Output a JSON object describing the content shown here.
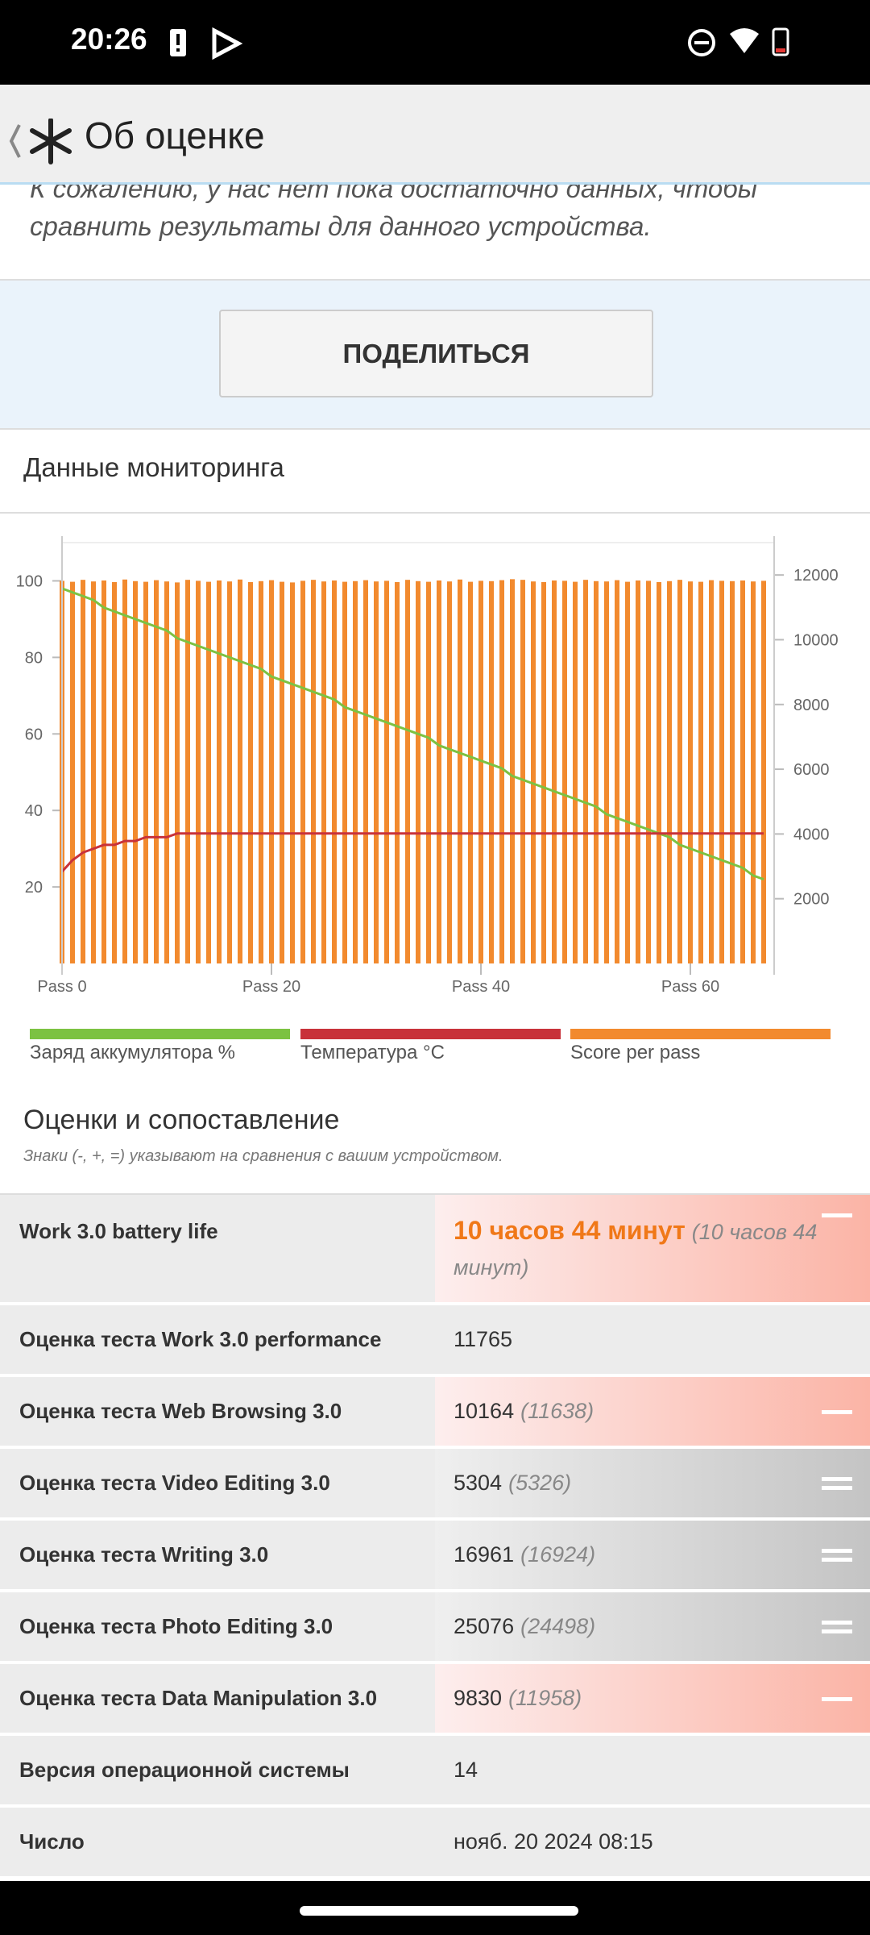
{
  "status_bar": {
    "time": "20:26"
  },
  "app_bar": {
    "title": "Об оценке"
  },
  "intro_text": "К сожалению, у нас нет пока достаточно данных, чтобы сравнить результаты для данного устройства.",
  "share_button": "ПОДЕЛИТЬСЯ",
  "monitoring": {
    "title": "Данные мониторинга"
  },
  "chart_data": {
    "type": "bar",
    "x": [
      0,
      1,
      2,
      3,
      4,
      5,
      6,
      7,
      8,
      9,
      10,
      11,
      12,
      13,
      14,
      15,
      16,
      17,
      18,
      19,
      20,
      21,
      22,
      23,
      24,
      25,
      26,
      27,
      28,
      29,
      30,
      31,
      32,
      33,
      34,
      35,
      36,
      37,
      38,
      39,
      40,
      41,
      42,
      43,
      44,
      45,
      46,
      47,
      48,
      49,
      50,
      51,
      52,
      53,
      54,
      55,
      56,
      57,
      58,
      59,
      60,
      61,
      62,
      63,
      64,
      65,
      66,
      67
    ],
    "xlim": [
      0,
      68
    ],
    "xticks": [
      {
        "value": 0,
        "label": "Pass 0"
      },
      {
        "value": 20,
        "label": "Pass 20"
      },
      {
        "value": 40,
        "label": "Pass 40"
      },
      {
        "value": 60,
        "label": "Pass 60"
      }
    ],
    "ylim": [
      0,
      110
    ],
    "yticks": [
      20,
      40,
      60,
      80,
      100
    ],
    "y2lim": [
      0,
      13000
    ],
    "y2ticks": [
      2000,
      4000,
      6000,
      8000,
      10000,
      12000
    ],
    "series": [
      {
        "name": "Заряд аккумулятора %",
        "type": "line",
        "color": "#7cc242",
        "values": [
          98,
          97,
          96,
          95,
          93,
          92,
          91,
          90,
          89,
          88,
          87,
          85,
          84,
          83,
          82,
          81,
          80,
          79,
          78,
          77,
          75,
          74,
          73,
          72,
          71,
          70,
          69,
          67,
          66,
          65,
          64,
          63,
          62,
          61,
          60,
          59,
          57,
          56,
          55,
          54,
          53,
          52,
          51,
          49,
          48,
          47,
          46,
          45,
          44,
          43,
          42,
          41,
          39,
          38,
          37,
          36,
          35,
          34,
          33,
          31,
          30,
          29,
          28,
          27,
          26,
          25,
          23,
          22
        ]
      },
      {
        "name": "Температура °C",
        "type": "line",
        "color": "#c8323a",
        "values": [
          24,
          27,
          29,
          30,
          31,
          31,
          32,
          32,
          33,
          33,
          33,
          34,
          34,
          34,
          34,
          34,
          34,
          34,
          34,
          34,
          34,
          34,
          34,
          34,
          34,
          34,
          34,
          34,
          34,
          34,
          34,
          34,
          34,
          34,
          34,
          34,
          34,
          34,
          34,
          34,
          34,
          34,
          34,
          34,
          34,
          34,
          34,
          34,
          34,
          34,
          34,
          34,
          34,
          34,
          34,
          34,
          34,
          34,
          34,
          34,
          34,
          34,
          34,
          34,
          34,
          34,
          34,
          34
        ]
      },
      {
        "name": "Score per pass",
        "type": "bar",
        "axis": "y2",
        "color": "#f28a2e",
        "values": [
          11820,
          11790,
          11850,
          11800,
          11830,
          11780,
          11860,
          11810,
          11790,
          11840,
          11800,
          11770,
          11850,
          11820,
          11790,
          11830,
          11800,
          11860,
          11780,
          11810,
          11840,
          11790,
          11770,
          11820,
          11850,
          11800,
          11830,
          11790,
          11810,
          11840,
          11800,
          11820,
          11780,
          11850,
          11810,
          11790,
          11830,
          11800,
          11860,
          11790,
          11820,
          11810,
          11840,
          11870,
          11850,
          11800,
          11780,
          11830,
          11820,
          11790,
          11850,
          11810,
          11800,
          11840,
          11790,
          11830,
          11820,
          11780,
          11810,
          11850,
          11800,
          11790,
          11840,
          11820,
          11810,
          11830,
          11800,
          11820
        ]
      }
    ]
  },
  "comparison": {
    "title": "Оценки и сопоставление",
    "note": "Знаки (-, +, =) указывают на сравнения с вашим устройством.",
    "rows": [
      {
        "label": "Work 3.0 battery life",
        "value": "10 часов 44 минут",
        "reference": "(10 часов 44 минут)",
        "sign": "-"
      },
      {
        "label": "Оценка теста Work 3.0 performance",
        "value": "11765"
      },
      {
        "label": "Оценка теста Web Browsing 3.0",
        "value": "10164",
        "reference": "(11638)",
        "sign": "-"
      },
      {
        "label": "Оценка теста Video Editing 3.0",
        "value": "5304",
        "reference": "(5326)",
        "sign": "="
      },
      {
        "label": "Оценка теста Writing 3.0",
        "value": "16961",
        "reference": "(16924)",
        "sign": "="
      },
      {
        "label": "Оценка теста Photo Editing 3.0",
        "value": "25076",
        "reference": "(24498)",
        "sign": "="
      },
      {
        "label": "Оценка теста Data Manipulation 3.0",
        "value": "9830",
        "reference": "(11958)",
        "sign": "-"
      },
      {
        "label": "Версия операционной системы",
        "value": "14"
      },
      {
        "label": "Число",
        "value": "нояб. 20 2024 08:15"
      }
    ]
  }
}
